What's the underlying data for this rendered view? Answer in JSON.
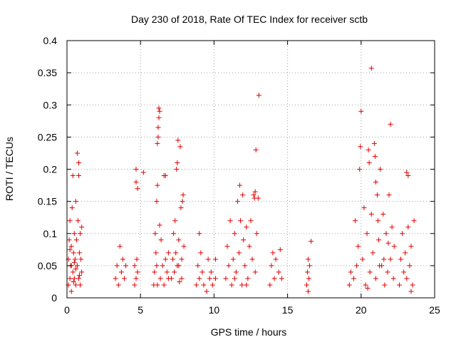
{
  "chart_data": {
    "type": "scatter",
    "title": "Day 230 of 2018, Rate Of TEC Index for receiver sctb",
    "xlabel": "GPS time / hours",
    "ylabel": "ROTI / TECUs",
    "xlim": [
      0,
      25
    ],
    "ylim": [
      0,
      0.4
    ],
    "xticks": [
      0,
      5,
      10,
      15,
      20,
      25
    ],
    "xtick_labels": [
      "0",
      "5",
      "10",
      "15",
      "20",
      "25"
    ],
    "yticks": [
      0,
      0.05,
      0.1,
      0.15,
      0.2,
      0.25,
      0.3,
      0.35,
      0.4
    ],
    "ytick_labels": [
      "0",
      "0.05",
      "0.1",
      "0.15",
      "0.2",
      "0.25",
      "0.3",
      "0.35",
      "0.4"
    ],
    "grid": true,
    "marker": "+",
    "marker_color": "#e00000",
    "series": [
      {
        "name": "ROTI",
        "points": [
          [
            0.1,
            0.02
          ],
          [
            0.1,
            0.06
          ],
          [
            0.15,
            0.09
          ],
          [
            0.2,
            0.03
          ],
          [
            0.2,
            0.12
          ],
          [
            0.25,
            0.05
          ],
          [
            0.3,
            0.08
          ],
          [
            0.3,
            0.01
          ],
          [
            0.35,
            0.14
          ],
          [
            0.4,
            0.04
          ],
          [
            0.4,
            0.19
          ],
          [
            0.45,
            0.07
          ],
          [
            0.5,
            0.1
          ],
          [
            0.5,
            0.03
          ],
          [
            0.55,
            0.06
          ],
          [
            0.6,
            0.15
          ],
          [
            0.6,
            0.02
          ],
          [
            0.65,
            0.09
          ],
          [
            0.7,
            0.05
          ],
          [
            0.75,
            0.12
          ],
          [
            0.8,
            0.03
          ],
          [
            0.8,
            0.21
          ],
          [
            0.85,
            0.07
          ],
          [
            0.9,
            0.1
          ],
          [
            0.9,
            0.02
          ],
          [
            0.95,
            0.06
          ],
          [
            1.0,
            0.04
          ],
          [
            1.0,
            0.11
          ],
          [
            0.7,
            0.225
          ],
          [
            0.8,
            0.19
          ],
          [
            0.3,
            0.05
          ],
          [
            0.5,
            0.055
          ],
          [
            0.6,
            0.045
          ],
          [
            0.85,
            0.035
          ],
          [
            0.2,
            0.075
          ],
          [
            0.45,
            0.025
          ],
          [
            3.3,
            0.03
          ],
          [
            3.4,
            0.05
          ],
          [
            3.5,
            0.02
          ],
          [
            3.6,
            0.08
          ],
          [
            3.7,
            0.04
          ],
          [
            3.8,
            0.06
          ],
          [
            3.9,
            0.03
          ],
          [
            4.0,
            0.05
          ],
          [
            4.6,
            0.02
          ],
          [
            4.6,
            0.05
          ],
          [
            4.7,
            0.03
          ],
          [
            4.7,
            0.18
          ],
          [
            4.7,
            0.2
          ],
          [
            4.8,
            0.04
          ],
          [
            4.8,
            0.17
          ],
          [
            4.75,
            0.06
          ],
          [
            5.2,
            0.195
          ],
          [
            5.9,
            0.02
          ],
          [
            5.95,
            0.04
          ],
          [
            6.0,
            0.1
          ],
          [
            6.05,
            0.07
          ],
          [
            6.1,
            0.05
          ],
          [
            6.15,
            0.02
          ],
          [
            6.1,
            0.15
          ],
          [
            6.15,
            0.175
          ],
          [
            6.15,
            0.24
          ],
          [
            6.2,
            0.25
          ],
          [
            6.2,
            0.265
          ],
          [
            6.25,
            0.28
          ],
          [
            6.25,
            0.295
          ],
          [
            6.3,
            0.29
          ],
          [
            6.3,
            0.113
          ],
          [
            6.35,
            0.03
          ],
          [
            6.4,
            0.09
          ],
          [
            6.5,
            0.05
          ],
          [
            6.6,
            0.02
          ],
          [
            6.7,
            0.06
          ],
          [
            6.6,
            0.19
          ],
          [
            6.7,
            0.19
          ],
          [
            6.8,
            0.04
          ],
          [
            6.9,
            0.07
          ],
          [
            6.9,
            0.03
          ],
          [
            7.1,
            0.03
          ],
          [
            7.2,
            0.06
          ],
          [
            7.25,
            0.1
          ],
          [
            7.3,
            0.04
          ],
          [
            7.35,
            0.12
          ],
          [
            7.4,
            0.07
          ],
          [
            7.45,
            0.2
          ],
          [
            7.5,
            0.21
          ],
          [
            7.5,
            0.05
          ],
          [
            7.55,
            0.245
          ],
          [
            7.6,
            0.09
          ],
          [
            7.65,
            0.025
          ],
          [
            7.7,
            0.235
          ],
          [
            7.75,
            0.14
          ],
          [
            7.8,
            0.06
          ],
          [
            7.85,
            0.15
          ],
          [
            7.9,
            0.16
          ],
          [
            7.95,
            0.08
          ],
          [
            7.8,
            0.03
          ],
          [
            7.6,
            0.05
          ],
          [
            8.8,
            0.02
          ],
          [
            8.9,
            0.05
          ],
          [
            9.0,
            0.1
          ],
          [
            9.0,
            0.03
          ],
          [
            9.1,
            0.07
          ],
          [
            9.2,
            0.04
          ],
          [
            9.3,
            0.02
          ],
          [
            9.6,
            0.06
          ],
          [
            9.7,
            0.03
          ],
          [
            9.8,
            0.04
          ],
          [
            9.9,
            0.02
          ],
          [
            10.1,
            0.06
          ],
          [
            10.1,
            0.03
          ],
          [
            9.5,
            0.01
          ],
          [
            10.8,
            0.03
          ],
          [
            10.9,
            0.08
          ],
          [
            11.0,
            0.05
          ],
          [
            11.1,
            0.12
          ],
          [
            11.2,
            0.02
          ],
          [
            11.3,
            0.06
          ],
          [
            11.4,
            0.1
          ],
          [
            11.5,
            0.04
          ],
          [
            11.6,
            0.15
          ],
          [
            11.7,
            0.07
          ],
          [
            11.8,
            0.12
          ],
          [
            11.9,
            0.02
          ],
          [
            12.0,
            0.09
          ],
          [
            12.1,
            0.05
          ],
          [
            12.2,
            0.11
          ],
          [
            12.3,
            0.03
          ],
          [
            12.4,
            0.08
          ],
          [
            12.5,
            0.12
          ],
          [
            12.6,
            0.06
          ],
          [
            12.7,
            0.16
          ],
          [
            12.8,
            0.04
          ],
          [
            12.9,
            0.1
          ],
          [
            11.75,
            0.175
          ],
          [
            11.95,
            0.16
          ],
          [
            12.8,
            0.165
          ],
          [
            12.85,
            0.23
          ],
          [
            13.05,
            0.315
          ],
          [
            12.75,
            0.155
          ],
          [
            13.0,
            0.155
          ],
          [
            11.4,
            0.03
          ],
          [
            12.2,
            0.02
          ],
          [
            13.8,
            0.02
          ],
          [
            13.9,
            0.05
          ],
          [
            14.0,
            0.07
          ],
          [
            14.1,
            0.03
          ],
          [
            14.2,
            0.06
          ],
          [
            14.4,
            0.04
          ],
          [
            14.5,
            0.075
          ],
          [
            14.6,
            0.03
          ],
          [
            16.3,
            0.02
          ],
          [
            16.35,
            0.04
          ],
          [
            16.4,
            0.06
          ],
          [
            16.45,
            0.03
          ],
          [
            16.5,
            0.05
          ],
          [
            16.6,
            0.088
          ],
          [
            16.4,
            0.01
          ],
          [
            19.2,
            0.02
          ],
          [
            19.3,
            0.04
          ],
          [
            19.5,
            0.03
          ],
          [
            19.6,
            0.12
          ],
          [
            19.7,
            0.05
          ],
          [
            19.8,
            0.08
          ],
          [
            19.9,
            0.2
          ],
          [
            19.95,
            0.235
          ],
          [
            20.0,
            0.29
          ],
          [
            20.1,
            0.06
          ],
          [
            20.2,
            0.14
          ],
          [
            20.3,
            0.02
          ],
          [
            20.4,
            0.1
          ],
          [
            20.5,
            0.23
          ],
          [
            20.55,
            0.21
          ],
          [
            20.6,
            0.04
          ],
          [
            20.7,
            0.13
          ],
          [
            20.8,
            0.07
          ],
          [
            20.9,
            0.24
          ],
          [
            20.95,
            0.22
          ],
          [
            21.0,
            0.18
          ],
          [
            21.0,
            0.03
          ],
          [
            21.1,
            0.16
          ],
          [
            21.2,
            0.09
          ],
          [
            21.3,
            0.2
          ],
          [
            21.4,
            0.05
          ],
          [
            21.5,
            0.13
          ],
          [
            21.6,
            0.02
          ],
          [
            21.7,
            0.1
          ],
          [
            21.8,
            0.04
          ],
          [
            21.9,
            0.16
          ],
          [
            22.0,
            0.06
          ],
          [
            22.0,
            0.27
          ],
          [
            22.1,
            0.11
          ],
          [
            22.2,
            0.03
          ],
          [
            20.7,
            0.357
          ],
          [
            21.15,
            0.12
          ],
          [
            21.25,
            0.05
          ],
          [
            20.45,
            0.015
          ],
          [
            21.85,
            0.085
          ],
          [
            21.55,
            0.06
          ],
          [
            22.25,
            0.08
          ],
          [
            22.6,
            0.02
          ],
          [
            22.7,
            0.06
          ],
          [
            22.8,
            0.1
          ],
          [
            22.9,
            0.04
          ],
          [
            23.0,
            0.07
          ],
          [
            23.1,
            0.03
          ],
          [
            23.2,
            0.11
          ],
          [
            23.3,
            0.05
          ],
          [
            23.4,
            0.08
          ],
          [
            23.5,
            0.02
          ],
          [
            23.6,
            0.12
          ],
          [
            23.1,
            0.195
          ],
          [
            23.2,
            0.19
          ],
          [
            23.4,
            0.01
          ]
        ]
      }
    ]
  }
}
